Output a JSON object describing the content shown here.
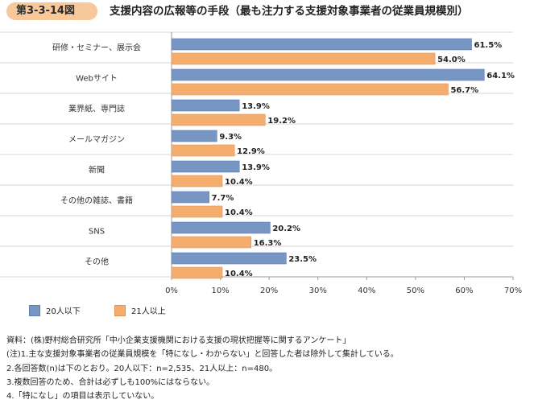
{
  "figure": {
    "label": "第3-3-14図",
    "title": "支援内容の広報等の手段（最も注力する支援対象事業者の従業員規模別）"
  },
  "chart_data": {
    "type": "bar",
    "orientation": "horizontal",
    "categories": [
      "研修・セミナー、展示会",
      "Webサイト",
      "業界紙、専門誌",
      "メールマガジン",
      "新聞",
      "その他の雑誌、書籍",
      "SNS",
      "その他"
    ],
    "series": [
      {
        "name": "20人以下",
        "values": [
          61.5,
          64.1,
          13.9,
          9.3,
          13.9,
          7.7,
          20.2,
          23.5
        ],
        "color": "#7896c4"
      },
      {
        "name": "21人以上",
        "values": [
          54.0,
          56.7,
          19.2,
          12.9,
          10.4,
          10.4,
          16.3,
          10.4
        ],
        "color": "#f5ad6e"
      }
    ],
    "value_format": "percent_1dp",
    "xlim": [
      0,
      70
    ],
    "xticks": [
      "0%",
      "10%",
      "20%",
      "30%",
      "40%",
      "50%",
      "60%",
      "70%"
    ],
    "legend_position": "bottom-left",
    "gridlines": "category separators"
  },
  "notes": [
    "資料：(株)野村総合研究所「中小企業支援機関における支援の現状把握等に関するアンケート」",
    "(注)1.主な支援対象事業者の従業員規模を「特になし・わからない」と回答した者は除外して集計している。",
    "2.各回答数(n)は下のとおり。20人以下：n=2,535、21人以上：n=480。",
    "3.複数回答のため、合計は必ずしも100%にはならない。",
    "4.「特になし」の項目は表示していない。"
  ]
}
